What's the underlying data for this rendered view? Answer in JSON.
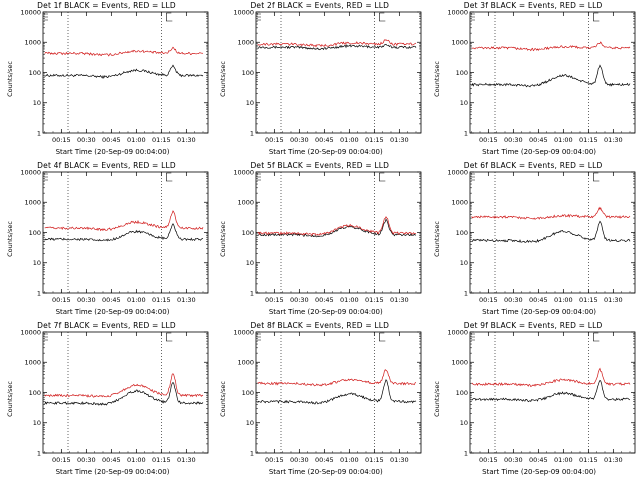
{
  "figure": {
    "xlabel": "Start Time (20-Sep-09 00:04:00)",
    "ylabel": "Counts/sec",
    "series_colors": {
      "events": "#000000",
      "lld": "#d01818"
    }
  },
  "chart_data": [
    {
      "type": "line",
      "title": "Det 1f BLACK = Events, RED = LLD",
      "xlabel": "Start Time (20-Sep-09 00:04:00)",
      "ylabel": "Counts/sec",
      "yscale": "log",
      "ylim": [
        1,
        10000
      ],
      "x_ticks": [
        "00:15",
        "00:30",
        "00:45",
        "01:00",
        "01:15",
        "01:30"
      ],
      "y_ticks": [
        "1",
        "10",
        "100",
        "1000",
        "10000"
      ],
      "markers": [
        "00:19",
        "01:15"
      ],
      "series": [
        {
          "name": "Events",
          "color": "#000000",
          "base": 80,
          "bump": 1.5,
          "peak": 2.0
        },
        {
          "name": "LLD",
          "color": "#d01818",
          "base": 430,
          "bump": 1.2,
          "peak": 1.5
        }
      ]
    },
    {
      "type": "line",
      "title": "Det 2f BLACK = Events, RED = LLD",
      "xlabel": "Start Time (20-Sep-09 00:04:00)",
      "ylabel": "Counts/sec",
      "yscale": "log",
      "ylim": [
        1,
        10000
      ],
      "x_ticks": [
        "00:15",
        "00:30",
        "00:45",
        "01:00",
        "01:15",
        "01:30"
      ],
      "y_ticks": [
        "1",
        "10",
        "100",
        "1000",
        "10000"
      ],
      "markers": [
        "00:19",
        "01:15"
      ],
      "series": [
        {
          "name": "Events",
          "color": "#000000",
          "base": 690,
          "bump": 1.1,
          "peak": 1.15
        },
        {
          "name": "LLD",
          "color": "#d01818",
          "base": 870,
          "bump": 1.1,
          "peak": 1.4
        }
      ]
    },
    {
      "type": "line",
      "title": "Det 3f BLACK = Events, RED = LLD",
      "xlabel": "Start Time (20-Sep-09 00:04:00)",
      "ylabel": "Counts/sec",
      "yscale": "log",
      "ylim": [
        1,
        10000
      ],
      "x_ticks": [
        "00:15",
        "00:30",
        "00:45",
        "01:00",
        "01:15",
        "01:30"
      ],
      "y_ticks": [
        "1",
        "10",
        "100",
        "1000",
        "10000"
      ],
      "markers": [
        "00:19",
        "01:15"
      ],
      "series": [
        {
          "name": "Events",
          "color": "#000000",
          "base": 40,
          "bump": 2.0,
          "peak": 4.0
        },
        {
          "name": "LLD",
          "color": "#d01818",
          "base": 650,
          "bump": 1.1,
          "peak": 1.5
        }
      ]
    },
    {
      "type": "line",
      "title": "Det 4f BLACK = Events, RED = LLD",
      "xlabel": "Start Time (20-Sep-09 00:04:00)",
      "ylabel": "Counts/sec",
      "yscale": "log",
      "ylim": [
        1,
        10000
      ],
      "x_ticks": [
        "00:15",
        "00:30",
        "00:45",
        "01:00",
        "01:15",
        "01:30"
      ],
      "y_ticks": [
        "1",
        "10",
        "100",
        "1000",
        "10000"
      ],
      "markers": [
        "00:19",
        "01:15"
      ],
      "series": [
        {
          "name": "Events",
          "color": "#000000",
          "base": 60,
          "bump": 1.8,
          "peak": 3.0
        },
        {
          "name": "LLD",
          "color": "#d01818",
          "base": 140,
          "bump": 1.6,
          "peak": 3.5
        }
      ]
    },
    {
      "type": "line",
      "title": "Det 5f BLACK = Events, RED = LLD",
      "xlabel": "Start Time (20-Sep-09 00:04:00)",
      "ylabel": "Counts/sec",
      "yscale": "log",
      "ylim": [
        1,
        10000
      ],
      "x_ticks": [
        "00:15",
        "00:30",
        "00:45",
        "01:00",
        "01:15",
        "01:30"
      ],
      "y_ticks": [
        "1",
        "10",
        "100",
        "1000",
        "10000"
      ],
      "markers": [
        "00:19",
        "01:15"
      ],
      "series": [
        {
          "name": "Events",
          "color": "#000000",
          "base": 85,
          "bump": 1.8,
          "peak": 3.0
        },
        {
          "name": "LLD",
          "color": "#d01818",
          "base": 95,
          "bump": 1.8,
          "peak": 3.5
        }
      ]
    },
    {
      "type": "line",
      "title": "Det 6f BLACK = Events, RED = LLD",
      "xlabel": "Start Time (20-Sep-09 00:04:00)",
      "ylabel": "Counts/sec",
      "yscale": "log",
      "ylim": [
        1,
        10000
      ],
      "x_ticks": [
        "00:15",
        "00:30",
        "00:45",
        "01:00",
        "01:15",
        "01:30"
      ],
      "y_ticks": [
        "1",
        "10",
        "100",
        "1000",
        "10000"
      ],
      "markers": [
        "00:19",
        "01:15"
      ],
      "series": [
        {
          "name": "Events",
          "color": "#000000",
          "base": 55,
          "bump": 2.0,
          "peak": 4.0
        },
        {
          "name": "LLD",
          "color": "#d01818",
          "base": 330,
          "bump": 1.1,
          "peak": 1.9
        }
      ]
    },
    {
      "type": "line",
      "title": "Det 7f BLACK = Events, RED = LLD",
      "xlabel": "Start Time (20-Sep-09 00:04:00)",
      "ylabel": "Counts/sec",
      "yscale": "log",
      "ylim": [
        1,
        10000
      ],
      "x_ticks": [
        "00:15",
        "00:30",
        "00:45",
        "01:00",
        "01:15",
        "01:30"
      ],
      "y_ticks": [
        "1",
        "10",
        "100",
        "1000",
        "10000"
      ],
      "markers": [
        "00:19",
        "01:15"
      ],
      "series": [
        {
          "name": "Events",
          "color": "#000000",
          "base": 45,
          "bump": 2.5,
          "peak": 4.5
        },
        {
          "name": "LLD",
          "color": "#d01818",
          "base": 80,
          "bump": 2.2,
          "peak": 5.0
        }
      ]
    },
    {
      "type": "line",
      "title": "Det 8f BLACK = Events, RED = LLD",
      "xlabel": "Start Time (20-Sep-09 00:04:00)",
      "ylabel": "Counts/sec",
      "yscale": "log",
      "ylim": [
        1,
        10000
      ],
      "x_ticks": [
        "00:15",
        "00:30",
        "00:45",
        "01:00",
        "01:15",
        "01:30"
      ],
      "y_ticks": [
        "1",
        "10",
        "100",
        "1000",
        "10000"
      ],
      "markers": [
        "00:19",
        "01:15"
      ],
      "series": [
        {
          "name": "Events",
          "color": "#000000",
          "base": 50,
          "bump": 1.8,
          "peak": 5.0
        },
        {
          "name": "LLD",
          "color": "#d01818",
          "base": 200,
          "bump": 1.3,
          "peak": 2.8
        }
      ]
    },
    {
      "type": "line",
      "title": "Det 9f BLACK = Events, RED = LLD",
      "xlabel": "Start Time (20-Sep-09 00:04:00)",
      "ylabel": "Counts/sec",
      "yscale": "log",
      "ylim": [
        1,
        10000
      ],
      "x_ticks": [
        "00:15",
        "00:30",
        "00:45",
        "01:00",
        "01:15",
        "01:30"
      ],
      "y_ticks": [
        "1",
        "10",
        "100",
        "1000",
        "10000"
      ],
      "markers": [
        "00:19",
        "01:15"
      ],
      "series": [
        {
          "name": "Events",
          "color": "#000000",
          "base": 60,
          "bump": 1.6,
          "peak": 4.0
        },
        {
          "name": "LLD",
          "color": "#d01818",
          "base": 190,
          "bump": 1.4,
          "peak": 3.0
        }
      ]
    }
  ]
}
